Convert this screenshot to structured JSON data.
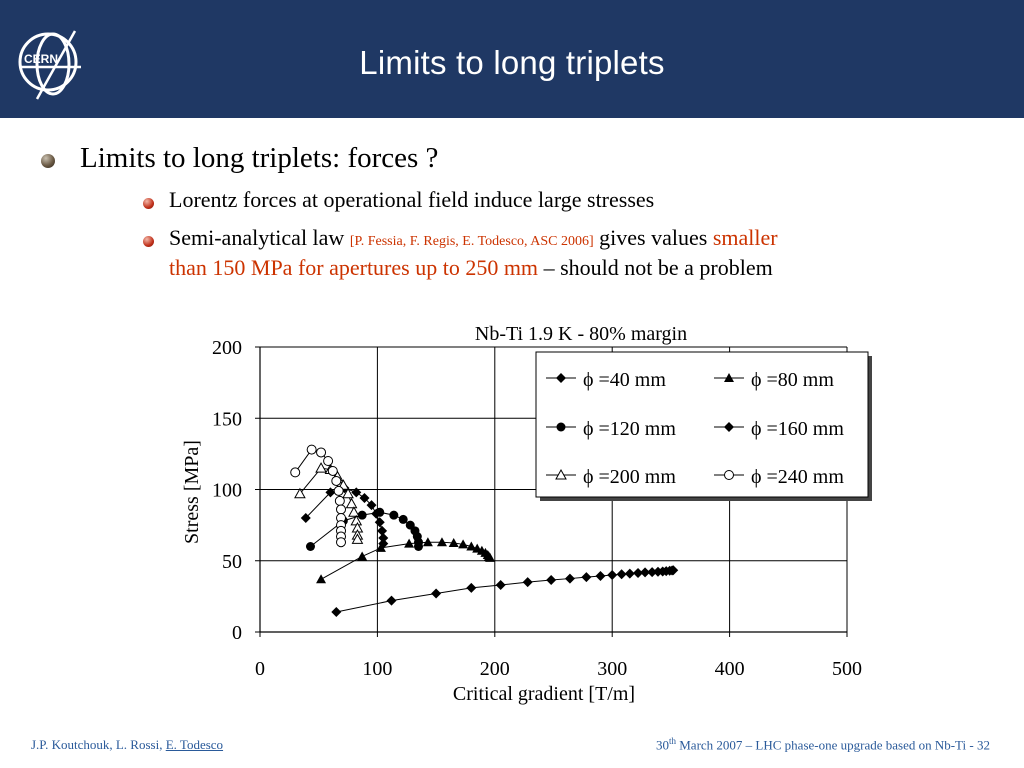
{
  "slide": {
    "title": "Limits to long triplets",
    "logo_text": "CERN",
    "bullet1": "Limits to long triplets: forces ?",
    "bullet2": "Lorentz forces at operational field induce large stresses",
    "bullet3": {
      "a": "Semi-analytical law ",
      "cite": "[P. Fessia, F. Regis, E. Todesco, ASC 2006]",
      "b": " gives values ",
      "c": "smaller",
      "d": "than 150 MPa for apertures up to 250 mm",
      "e": " – should not be a problem"
    }
  },
  "footer": {
    "authors": "J.P. Koutchouk, L. Rossi, ",
    "author_link": "E. Todesco",
    "date_day": "30",
    "date_sup": "th",
    "date_rest": " March 2007 – LHC phase-one upgrade based on Nb-Ti  - 32"
  },
  "colors": {
    "header": "#1f3864",
    "accent_red": "#cc3300",
    "footer_text": "#2a5a9a"
  },
  "chart_data": {
    "type": "scatter",
    "title": "Nb-Ti 1.9 K - 80% margin",
    "xlabel": "Critical gradient [T/m]",
    "ylabel": "Stress [MPa]",
    "xlim": [
      0,
      500
    ],
    "ylim": [
      0,
      200
    ],
    "xticks": [
      0,
      100,
      200,
      300,
      400,
      500
    ],
    "yticks": [
      0,
      50,
      100,
      150,
      200
    ],
    "grid": true,
    "legend_position": "top-right",
    "series": [
      {
        "name": "ϕ =40 mm",
        "marker": "diamond",
        "points": [
          [
            65,
            14
          ],
          [
            112,
            22
          ],
          [
            150,
            27
          ],
          [
            180,
            31
          ],
          [
            205,
            33
          ],
          [
            228,
            35
          ],
          [
            248,
            36.5
          ],
          [
            264,
            37.5
          ],
          [
            278,
            38.5
          ],
          [
            290,
            39.3
          ],
          [
            300,
            40
          ],
          [
            308,
            40.5
          ],
          [
            315,
            41
          ],
          [
            322,
            41.4
          ],
          [
            328,
            41.8
          ],
          [
            334,
            42
          ],
          [
            339,
            42.3
          ],
          [
            343,
            42.5
          ],
          [
            346,
            42.7
          ],
          [
            349,
            43
          ],
          [
            351,
            43.2
          ],
          [
            352,
            43.3
          ]
        ]
      },
      {
        "name": "ϕ =80 mm",
        "marker": "triangle",
        "points": [
          [
            52,
            37
          ],
          [
            87,
            53
          ],
          [
            103,
            59
          ],
          [
            127,
            62
          ],
          [
            143,
            63
          ],
          [
            155,
            63
          ],
          [
            165,
            62.5
          ],
          [
            173,
            61.5
          ],
          [
            180,
            60
          ],
          [
            185,
            58.5
          ],
          [
            189,
            57
          ],
          [
            192,
            55.5
          ],
          [
            194,
            54
          ],
          [
            195,
            53
          ],
          [
            196,
            52
          ]
        ]
      },
      {
        "name": "ϕ =120 mm",
        "marker": "circle",
        "points": [
          [
            43,
            60
          ],
          [
            71,
            78
          ],
          [
            87,
            82
          ],
          [
            102,
            84
          ],
          [
            114,
            82
          ],
          [
            122,
            79
          ],
          [
            128,
            75
          ],
          [
            132,
            71
          ],
          [
            134,
            67
          ],
          [
            135,
            63
          ],
          [
            135,
            60
          ]
        ]
      },
      {
        "name": "ϕ =160 mm",
        "marker": "diamond",
        "points": [
          [
            39,
            80
          ],
          [
            60,
            98
          ],
          [
            72,
            101
          ],
          [
            82,
            98
          ],
          [
            89,
            94
          ],
          [
            95,
            89
          ],
          [
            99,
            83
          ],
          [
            102,
            77
          ],
          [
            104,
            71
          ],
          [
            105,
            66
          ],
          [
            105,
            62
          ]
        ]
      },
      {
        "name": "ϕ =200 mm",
        "marker": "open-triangle",
        "points": [
          [
            34,
            97
          ],
          [
            52,
            115
          ],
          [
            60,
            114
          ],
          [
            66,
            109
          ],
          [
            71,
            103
          ],
          [
            75,
            97
          ],
          [
            78,
            90
          ],
          [
            80,
            84
          ],
          [
            82,
            78
          ],
          [
            83,
            73
          ],
          [
            83,
            68
          ],
          [
            83,
            65
          ]
        ]
      },
      {
        "name": "ϕ =240 mm",
        "marker": "open-circle",
        "points": [
          [
            30,
            112
          ],
          [
            44,
            128
          ],
          [
            52,
            126
          ],
          [
            58,
            120
          ],
          [
            62,
            113
          ],
          [
            65,
            106
          ],
          [
            67,
            99
          ],
          [
            68,
            92
          ],
          [
            69,
            86
          ],
          [
            69,
            80
          ],
          [
            69,
            75
          ],
          [
            69,
            71
          ],
          [
            69,
            67
          ],
          [
            69,
            63
          ]
        ]
      }
    ]
  }
}
